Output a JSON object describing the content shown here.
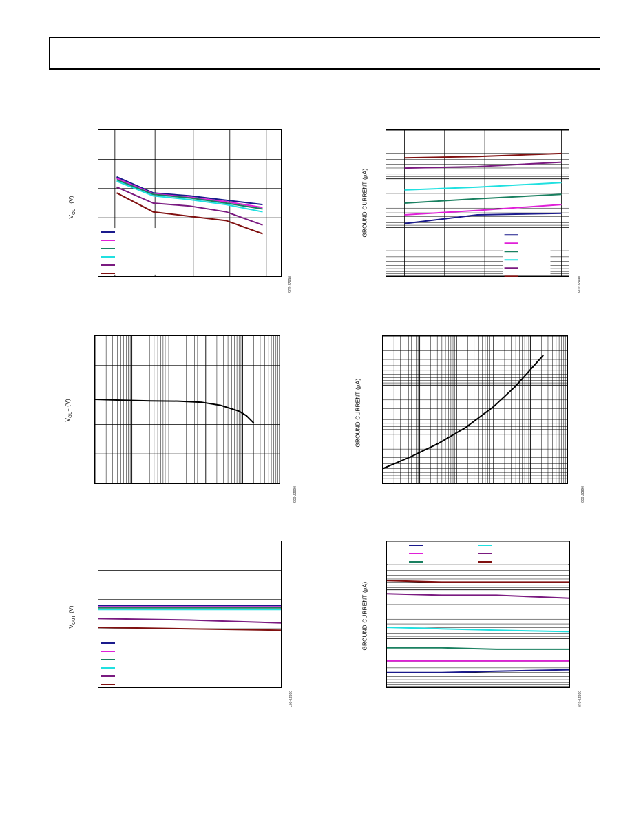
{
  "page": {
    "header_text": ""
  },
  "chart_data": [
    {
      "id": "p1",
      "type": "line",
      "title": "",
      "xlabel": "",
      "ylabel": "V",
      "ylabel_sub": "OUT",
      "ylabel_unit": " (V)",
      "figure_code": "06827-005",
      "xlim": [
        0,
        1
      ],
      "ylim": [
        0,
        5
      ],
      "xgrid": [
        0.09,
        0.31,
        0.52,
        0.72,
        0.92
      ],
      "ygrid": [
        1,
        2,
        3,
        4
      ],
      "legend": {
        "placement": "bottom-left",
        "entries": 6
      },
      "series": [
        {
          "color": "#1a1a8c",
          "x": [
            0.1,
            0.3,
            0.5,
            0.7,
            0.9
          ],
          "y": [
            3.4,
            2.85,
            2.75,
            2.6,
            2.45
          ]
        },
        {
          "color": "#e020d8",
          "x": [
            0.1,
            0.3,
            0.5,
            0.7,
            0.9
          ],
          "y": [
            3.35,
            2.82,
            2.7,
            2.55,
            2.35
          ]
        },
        {
          "color": "#1a8060",
          "x": [
            0.1,
            0.3,
            0.5,
            0.7,
            0.9
          ],
          "y": [
            3.3,
            2.8,
            2.68,
            2.5,
            2.3
          ]
        },
        {
          "color": "#20e0e0",
          "x": [
            0.1,
            0.3,
            0.5,
            0.7,
            0.9
          ],
          "y": [
            3.25,
            2.75,
            2.62,
            2.45,
            2.2
          ]
        },
        {
          "color": "#7a1a80",
          "x": [
            0.1,
            0.3,
            0.5,
            0.7,
            0.9
          ],
          "y": [
            3.05,
            2.5,
            2.4,
            2.2,
            1.75
          ]
        },
        {
          "color": "#801010",
          "x": [
            0.1,
            0.3,
            0.5,
            0.7,
            0.9
          ],
          "y": [
            2.85,
            2.2,
            2.05,
            1.9,
            1.45
          ]
        }
      ]
    },
    {
      "id": "p2",
      "type": "line",
      "title": "",
      "xlabel": "",
      "ylabel": "GROUND CURRENT (µA)",
      "figure_code": "06827-008",
      "xlim": [
        0,
        1
      ],
      "ylim": [
        0,
        1
      ],
      "ylog": true,
      "xgrid": [
        0.1,
        0.32,
        0.54,
        0.76,
        0.96
      ],
      "legend": {
        "placement": "bottom-right",
        "entries": 6
      },
      "series": [
        {
          "color": "#1a1a8c",
          "x": [
            0.1,
            0.5,
            0.96
          ],
          "y": [
            0.36,
            0.42,
            0.43
          ]
        },
        {
          "color": "#e020d8",
          "x": [
            0.1,
            0.5,
            0.96
          ],
          "y": [
            0.42,
            0.45,
            0.49
          ]
        },
        {
          "color": "#1a8060",
          "x": [
            0.1,
            0.5,
            0.96
          ],
          "y": [
            0.5,
            0.53,
            0.56
          ]
        },
        {
          "color": "#20e0e0",
          "x": [
            0.1,
            0.5,
            0.96
          ],
          "y": [
            0.59,
            0.61,
            0.64
          ]
        },
        {
          "color": "#7a1a80",
          "x": [
            0.1,
            0.5,
            0.96
          ],
          "y": [
            0.74,
            0.75,
            0.78
          ]
        },
        {
          "color": "#801010",
          "x": [
            0.1,
            0.5,
            0.96
          ],
          "y": [
            0.81,
            0.82,
            0.84
          ]
        }
      ]
    },
    {
      "id": "p3",
      "type": "line",
      "title": "",
      "xlabel": "",
      "ylabel": "V",
      "ylabel_sub": "OUT",
      "ylabel_unit": " (V)",
      "figure_code": "06827-006",
      "xlog": true,
      "xlim": [
        0,
        1
      ],
      "ylim": [
        0,
        5
      ],
      "ygrid": [
        1,
        2,
        3,
        4
      ],
      "series": [
        {
          "color": "#000000",
          "x": [
            0.0,
            0.15,
            0.3,
            0.45,
            0.58,
            0.68,
            0.78,
            0.82,
            0.86
          ],
          "y": [
            2.85,
            2.82,
            2.8,
            2.79,
            2.75,
            2.65,
            2.45,
            2.3,
            2.05
          ]
        }
      ]
    },
    {
      "id": "p4",
      "type": "line",
      "title": "",
      "xlabel": "",
      "ylabel": "GROUND CURRENT (µA)",
      "figure_code": "06827-009",
      "xlog": true,
      "ylog": true,
      "xlim": [
        0,
        1
      ],
      "ylim": [
        0,
        1
      ],
      "series": [
        {
          "color": "#000000",
          "x": [
            0.0,
            0.15,
            0.3,
            0.45,
            0.6,
            0.72,
            0.82,
            0.87
          ],
          "y": [
            0.1,
            0.18,
            0.27,
            0.38,
            0.52,
            0.66,
            0.8,
            0.87
          ]
        }
      ]
    },
    {
      "id": "p5",
      "type": "line",
      "title": "",
      "xlabel": "",
      "ylabel": "V",
      "ylabel_sub": "OUT",
      "ylabel_unit": " (V)",
      "figure_code": "06827-007",
      "xlim": [
        0,
        1
      ],
      "ylim": [
        0,
        5
      ],
      "ygrid": [
        1,
        2,
        3,
        4
      ],
      "legend": {
        "placement": "bottom-left",
        "entries": 6
      },
      "series": [
        {
          "color": "#1a1a8c",
          "x": [
            0,
            0.5,
            1
          ],
          "y": [
            2.8,
            2.8,
            2.8
          ]
        },
        {
          "color": "#e020d8",
          "x": [
            0,
            0.5,
            1
          ],
          "y": [
            2.75,
            2.75,
            2.75
          ]
        },
        {
          "color": "#1a8060",
          "x": [
            0,
            0.5,
            1
          ],
          "y": [
            2.72,
            2.72,
            2.72
          ]
        },
        {
          "color": "#20e0e0",
          "x": [
            0,
            0.5,
            1
          ],
          "y": [
            2.66,
            2.66,
            2.66
          ]
        },
        {
          "color": "#7a1a80",
          "x": [
            0,
            0.5,
            1
          ],
          "y": [
            2.35,
            2.3,
            2.2
          ]
        },
        {
          "color": "#801010",
          "x": [
            0,
            0.5,
            1
          ],
          "y": [
            2.05,
            2.0,
            1.95
          ]
        }
      ]
    },
    {
      "id": "p6",
      "type": "line",
      "title": "",
      "xlabel": "",
      "ylabel": "GROUND CURRENT (µA)",
      "figure_code": "06827-010",
      "ylog": true,
      "xlim": [
        0,
        1
      ],
      "ylim": [
        0,
        1
      ],
      "legend": {
        "placement": "top",
        "entries": 6
      },
      "series": [
        {
          "color": "#1a1a8c",
          "x": [
            0,
            0.3,
            0.6,
            1
          ],
          "y": [
            0.1,
            0.1,
            0.11,
            0.12
          ]
        },
        {
          "color": "#e020d8",
          "x": [
            0,
            0.3,
            0.6,
            1
          ],
          "y": [
            0.18,
            0.18,
            0.18,
            0.18
          ]
        },
        {
          "color": "#1a8060",
          "x": [
            0,
            0.3,
            0.6,
            1
          ],
          "y": [
            0.27,
            0.27,
            0.26,
            0.26
          ]
        },
        {
          "color": "#20e0e0",
          "x": [
            0,
            0.3,
            0.6,
            1
          ],
          "y": [
            0.41,
            0.4,
            0.39,
            0.38
          ]
        },
        {
          "color": "#7a1a80",
          "x": [
            0,
            0.3,
            0.6,
            1
          ],
          "y": [
            0.64,
            0.63,
            0.63,
            0.61
          ]
        },
        {
          "color": "#801010",
          "x": [
            0,
            0.3,
            0.6,
            1
          ],
          "y": [
            0.73,
            0.72,
            0.72,
            0.72
          ]
        }
      ]
    }
  ]
}
